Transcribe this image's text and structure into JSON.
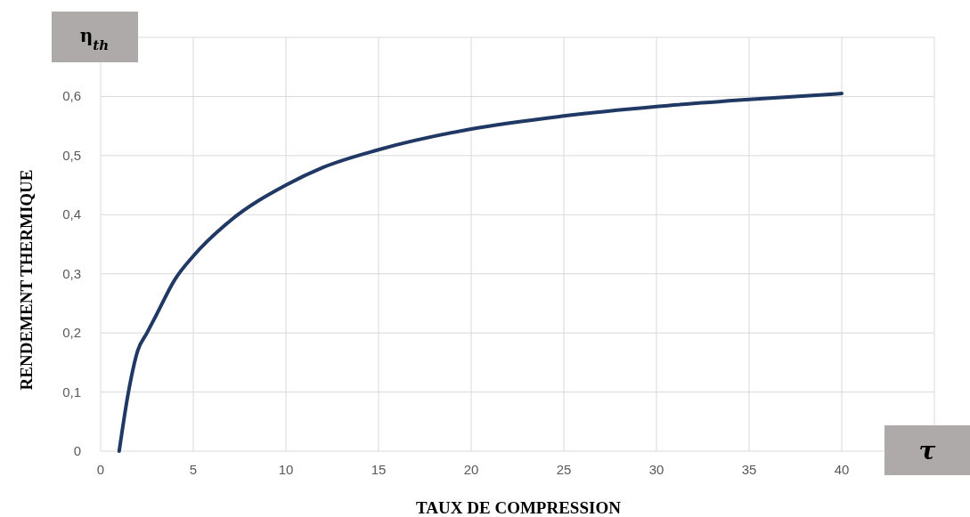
{
  "chart_data": {
    "type": "line",
    "xlabel": "TAUX DE COMPRESSION",
    "ylabel": "RENDEMENT THERMIQUE",
    "annotations": [
      "η$_{th}$",
      "τ"
    ],
    "series": [
      {
        "color": "#203864",
        "x": [
          1,
          1.5,
          2,
          2.5,
          3,
          4,
          5,
          7,
          10,
          12,
          15,
          20,
          25,
          30,
          35,
          40
        ],
        "values": [
          0,
          0.1,
          0.17,
          0.2,
          0.23,
          0.29,
          0.33,
          0.39,
          0.45,
          0.48,
          0.51,
          0.545,
          0.567,
          0.583,
          0.595,
          0.605
        ]
      }
    ],
    "xlim": [
      0,
      45
    ],
    "ylim": [
      0,
      0.7
    ],
    "xticks": [
      0,
      5,
      10,
      15,
      20,
      25,
      30,
      35,
      40,
      {
        "value": 45,
        "label": null
      }
    ],
    "yticks": [
      0,
      {
        "value": 0.1,
        "label": "0,1"
      },
      {
        "value": 0.2,
        "label": "0,2"
      },
      {
        "value": 0.3,
        "label": "0,3"
      },
      {
        "value": 0.4,
        "label": "0,4"
      },
      {
        "value": 0.5,
        "label": "0,5"
      },
      {
        "value": 0.6,
        "label": "0,6"
      },
      {
        "value": 0.7,
        "label": null
      }
    ],
    "grid": true,
    "marker": "none",
    "line_style": "solid"
  }
}
